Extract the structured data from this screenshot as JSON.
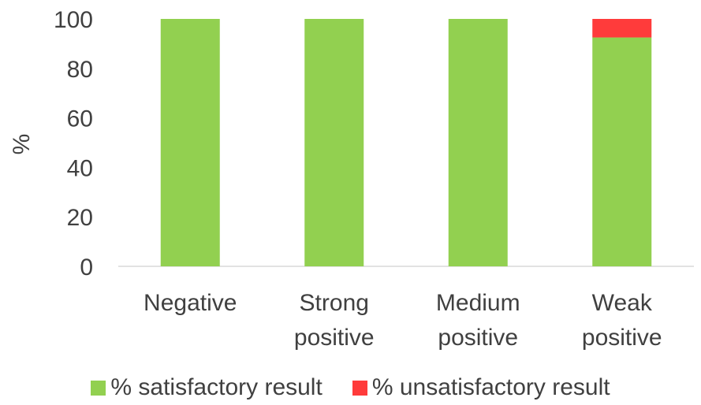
{
  "chart_data": {
    "type": "bar",
    "stacked": true,
    "categories": [
      [
        "Negative"
      ],
      [
        "Strong",
        "positive"
      ],
      [
        "Medium",
        "positive"
      ],
      [
        "Weak",
        "positive"
      ]
    ],
    "series": [
      {
        "name": "% satisfactory result",
        "color": "#92d050",
        "values": [
          100,
          100,
          100,
          92.5
        ]
      },
      {
        "name": "% unsatisfactory result",
        "color": "#ff3b3b",
        "values": [
          0,
          0,
          0,
          7.5
        ]
      }
    ],
    "ylabel": "%",
    "ylim": [
      0,
      100
    ],
    "yticks": [
      0,
      20,
      40,
      60,
      80,
      100
    ],
    "grid": false,
    "legend": "bottom"
  }
}
